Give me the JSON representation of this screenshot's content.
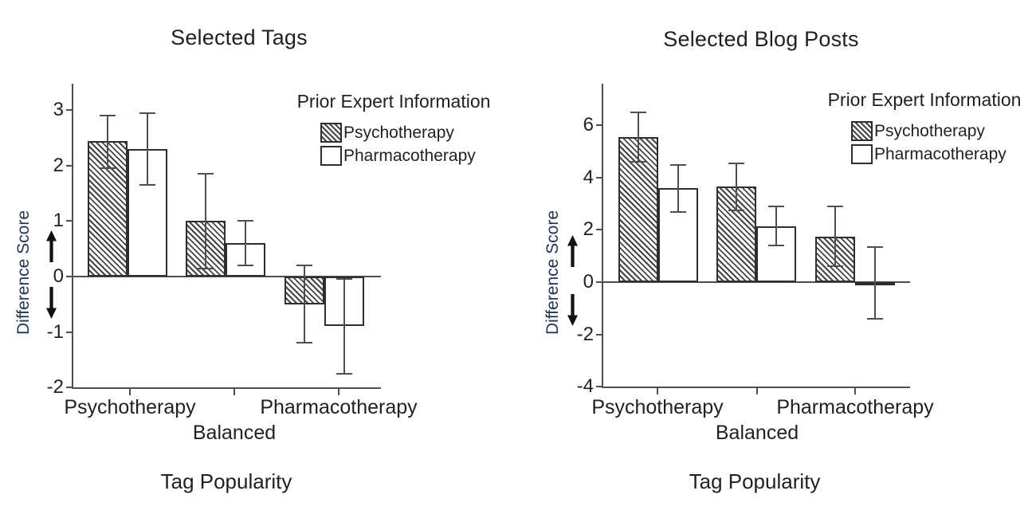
{
  "figure": {
    "background": "#ffffff"
  },
  "colors": {
    "text": "#231f20",
    "axis": "#4f4f4f",
    "bar_outline": "#2e2e2e",
    "hatch_line": "#454545",
    "y_axis_label": "#1e3356",
    "error_bar": "#4f4f4f"
  },
  "icons": {
    "up_arrow": "↑",
    "down_arrow": "↓"
  },
  "chart_data": [
    {
      "type": "bar",
      "title": "Selected Tags",
      "xlabel": "Tag Popularity",
      "ylabel": "Difference Score",
      "legend_title": "Prior Expert Information",
      "legend_position": "top-right",
      "grid": false,
      "categories": [
        "Psychotherapy",
        "Balanced",
        "Pharmacotherapy"
      ],
      "yticks": [
        3,
        2,
        1,
        0,
        -1,
        -2
      ],
      "ylim": [
        -2,
        3.48
      ],
      "series": [
        {
          "name": "Psychotherapy",
          "fill": "hatched",
          "values": [
            2.45,
            1.0,
            -0.5
          ],
          "err_low": [
            1.95,
            0.15,
            -1.2
          ],
          "err_high": [
            2.9,
            1.85,
            0.2
          ]
        },
        {
          "name": "Pharmacotherapy",
          "fill": "white",
          "values": [
            2.3,
            0.6,
            -0.9
          ],
          "err_low": [
            1.65,
            0.2,
            -1.75
          ],
          "err_high": [
            2.95,
            1.0,
            -0.05
          ]
        }
      ]
    },
    {
      "type": "bar",
      "title": "Selected Blog Posts",
      "xlabel": "Tag Popularity",
      "ylabel": "Difference Score",
      "legend_title": "Prior Expert Information",
      "legend_position": "top-right",
      "grid": false,
      "categories": [
        "Psychotherapy",
        "Balanced",
        "Pharmacotherapy"
      ],
      "yticks": [
        6,
        4,
        2,
        0,
        -2,
        -4
      ],
      "ylim": [
        -4,
        7.6
      ],
      "series": [
        {
          "name": "Psychotherapy",
          "fill": "hatched",
          "values": [
            5.55,
            3.65,
            1.75
          ],
          "err_low": [
            4.6,
            2.75,
            0.6
          ],
          "err_high": [
            6.5,
            4.55,
            2.9
          ]
        },
        {
          "name": "Pharmacotherapy",
          "fill": "white",
          "values": [
            3.6,
            2.15,
            -0.1
          ],
          "err_low": [
            2.7,
            1.4,
            -1.4
          ],
          "err_high": [
            4.5,
            2.9,
            1.35
          ]
        }
      ]
    }
  ]
}
